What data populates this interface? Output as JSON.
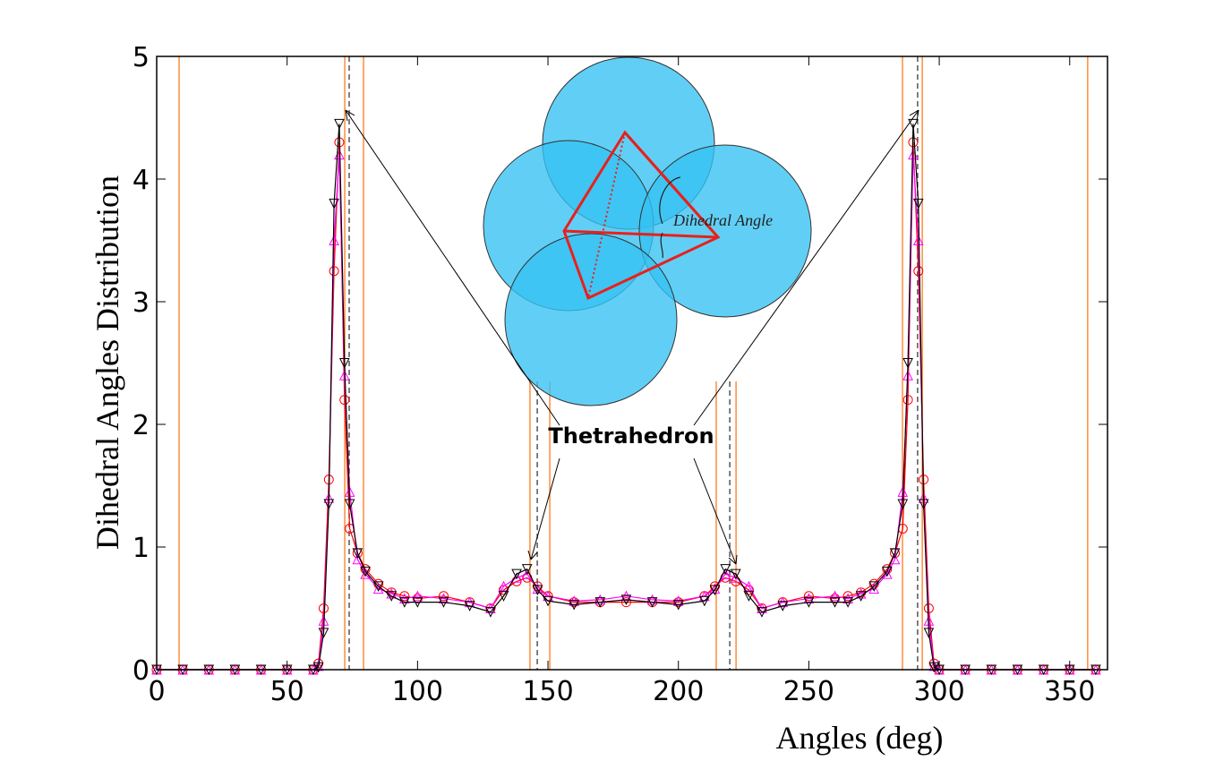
{
  "chart_data": {
    "type": "line",
    "xlabel": "Angles (deg)",
    "ylabel": "Dihedral Angles Distribution",
    "annotation": "Thetrahedron",
    "inset_label": "Dihedral Angle",
    "xlim": [
      0,
      364.5
    ],
    "ylim": [
      0,
      5
    ],
    "xticks": [
      0,
      50,
      100,
      150,
      200,
      250,
      300,
      350
    ],
    "yticks": [
      0,
      1,
      2,
      3,
      4,
      5
    ],
    "grid": false,
    "x": [
      0,
      10,
      20,
      30,
      40,
      50,
      60,
      62,
      64,
      66,
      68,
      70,
      72,
      74,
      77,
      80,
      85,
      90,
      95,
      100,
      110,
      120,
      128,
      133,
      138,
      142,
      146,
      150,
      160,
      170,
      180,
      190,
      200,
      210,
      214,
      218,
      222,
      227,
      232,
      240,
      250,
      260,
      265,
      270,
      275,
      280,
      283,
      286,
      288,
      290,
      292,
      294,
      296,
      298,
      300,
      310,
      320,
      330,
      340,
      350,
      360
    ],
    "series": [
      {
        "color": "#ff0000",
        "marker": "o",
        "values": [
          0,
          0,
          0,
          0,
          0,
          0,
          0,
          0.05,
          0.5,
          1.55,
          3.25,
          4.3,
          2.2,
          1.15,
          0.95,
          0.82,
          0.7,
          0.63,
          0.6,
          0.58,
          0.6,
          0.55,
          0.5,
          0.65,
          0.72,
          0.75,
          0.68,
          0.6,
          0.55,
          0.55,
          0.55,
          0.55,
          0.55,
          0.6,
          0.68,
          0.75,
          0.72,
          0.65,
          0.5,
          0.55,
          0.6,
          0.58,
          0.6,
          0.63,
          0.7,
          0.82,
          0.95,
          1.15,
          2.2,
          4.3,
          3.25,
          1.55,
          0.5,
          0.05,
          0,
          0,
          0,
          0,
          0,
          0,
          0
        ]
      },
      {
        "color": "#ff00ff",
        "marker": "^",
        "values": [
          0,
          0,
          0,
          0,
          0,
          0,
          0,
          0.03,
          0.4,
          1.4,
          3.5,
          4.2,
          2.4,
          1.45,
          0.9,
          0.78,
          0.66,
          0.62,
          0.58,
          0.6,
          0.58,
          0.55,
          0.5,
          0.68,
          0.75,
          0.78,
          0.66,
          0.6,
          0.56,
          0.57,
          0.6,
          0.57,
          0.56,
          0.6,
          0.66,
          0.78,
          0.75,
          0.68,
          0.5,
          0.55,
          0.58,
          0.6,
          0.58,
          0.62,
          0.66,
          0.78,
          0.9,
          1.45,
          2.4,
          4.2,
          3.5,
          1.4,
          0.4,
          0.03,
          0,
          0,
          0,
          0,
          0,
          0,
          0
        ]
      },
      {
        "color": "#000000",
        "marker": "v",
        "values": [
          0,
          0,
          0,
          0,
          0,
          0,
          0,
          0.02,
          0.3,
          1.35,
          3.8,
          4.45,
          2.5,
          1.35,
          0.95,
          0.8,
          0.68,
          0.6,
          0.55,
          0.55,
          0.55,
          0.52,
          0.47,
          0.6,
          0.78,
          0.82,
          0.65,
          0.56,
          0.53,
          0.55,
          0.57,
          0.55,
          0.53,
          0.56,
          0.65,
          0.82,
          0.78,
          0.6,
          0.47,
          0.52,
          0.55,
          0.55,
          0.55,
          0.6,
          0.68,
          0.8,
          0.95,
          1.35,
          2.5,
          4.45,
          3.8,
          1.35,
          0.3,
          0.02,
          0,
          0,
          0,
          0,
          0,
          0,
          0
        ]
      }
    ],
    "ref_color": "#ff8c3a",
    "ref_lines": [
      {
        "x": 8.6,
        "top": 5,
        "dashed": false
      },
      {
        "x": 72.1,
        "top": 5,
        "dashed": false
      },
      {
        "x": 73.8,
        "top": 5,
        "dashed": true
      },
      {
        "x": 79.3,
        "top": 5,
        "dashed": false
      },
      {
        "x": 143.1,
        "top": 2.35,
        "dashed": false
      },
      {
        "x": 145.9,
        "top": 2.35,
        "dashed": true
      },
      {
        "x": 150.7,
        "top": 2.35,
        "dashed": false
      },
      {
        "x": 214.5,
        "top": 2.35,
        "dashed": false
      },
      {
        "x": 219.7,
        "top": 2.35,
        "dashed": true
      },
      {
        "x": 222.1,
        "top": 2.35,
        "dashed": false
      },
      {
        "x": 285.9,
        "top": 5,
        "dashed": false
      },
      {
        "x": 291.7,
        "top": 5,
        "dashed": true
      },
      {
        "x": 293.5,
        "top": 5,
        "dashed": false
      },
      {
        "x": 356.9,
        "top": 5,
        "dashed": false
      }
    ]
  }
}
